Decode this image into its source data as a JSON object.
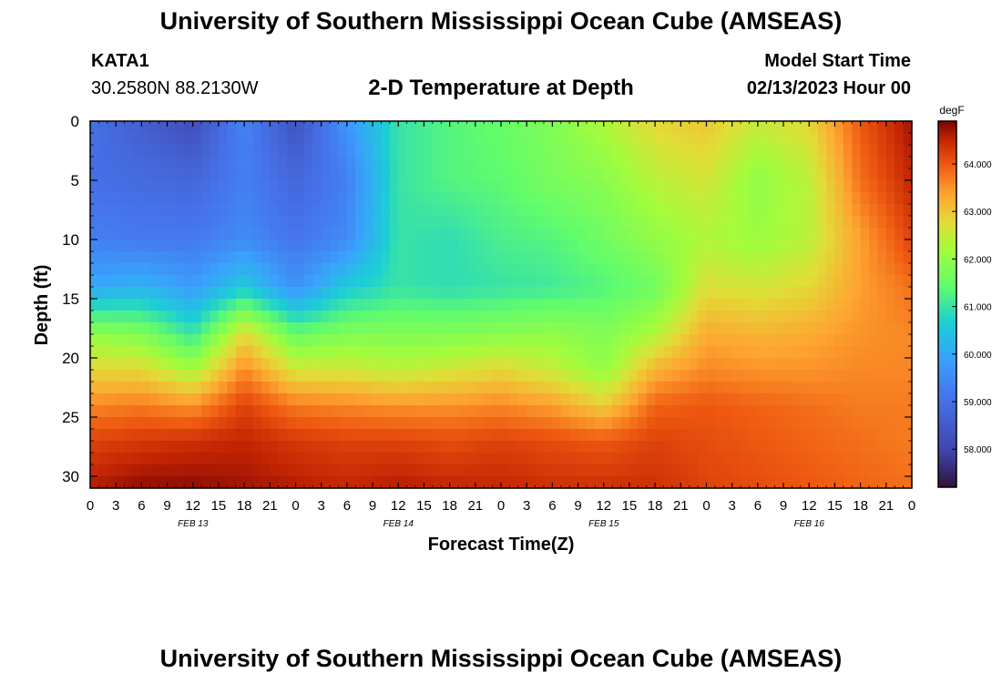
{
  "header": {
    "title": "University of Southern Mississippi Ocean Cube (AMSEAS)",
    "station": "KATA1",
    "coordinates": "30.2580N  88.2130W",
    "model_start_label": "Model Start Time",
    "model_start_value": "02/13/2023 Hour 00"
  },
  "footer": {
    "title": "University of Southern Mississippi Ocean Cube (AMSEAS)"
  },
  "chart_data": {
    "type": "heatmap",
    "title": "2-D Temperature at Depth",
    "xlabel": "Forecast Time(Z)",
    "ylabel": "Depth (ft)",
    "x_tick_labels": [
      "0",
      "3",
      "6",
      "9",
      "12",
      "15",
      "18",
      "21",
      "0",
      "3",
      "6",
      "9",
      "12",
      "15",
      "18",
      "21",
      "0",
      "3",
      "6",
      "9",
      "12",
      "15",
      "18",
      "21",
      "0",
      "3",
      "6",
      "9",
      "12",
      "15",
      "18",
      "21",
      "0"
    ],
    "x_range_hours": [
      0,
      96
    ],
    "date_labels": [
      {
        "label": "FEB 13",
        "hour": 12
      },
      {
        "label": "FEB 14",
        "hour": 36
      },
      {
        "label": "FEB 15",
        "hour": 60
      },
      {
        "label": "FEB 16",
        "hour": 84
      }
    ],
    "y_ticks": [
      0,
      5,
      10,
      15,
      20,
      25,
      30
    ],
    "ylim": [
      0,
      31
    ],
    "colorbar": {
      "unit": "degF",
      "ticks": [
        "64.000",
        "63.000",
        "62.000",
        "61.000",
        "60.000",
        "59.000",
        "58.000"
      ],
      "tick_values": [
        64,
        63,
        62,
        61,
        60,
        59,
        58
      ],
      "range": [
        57.2,
        64.9
      ]
    },
    "grid": {
      "hours": [
        0,
        6,
        12,
        18,
        24,
        30,
        36,
        42,
        48,
        54,
        60,
        66,
        72,
        78,
        84,
        90,
        96
      ],
      "depths": [
        0,
        5,
        10,
        14,
        18,
        21,
        24,
        27,
        31
      ],
      "values": [
        [
          59.0,
          58.6,
          58.2,
          59.4,
          58.3,
          59.7,
          61.0,
          61.3,
          61.5,
          61.8,
          62.3,
          62.8,
          63.0,
          62.5,
          62.8,
          64.0,
          64.7
        ],
        [
          59.0,
          58.9,
          58.8,
          59.3,
          58.8,
          59.3,
          61.0,
          61.3,
          61.4,
          61.7,
          61.9,
          62.4,
          62.6,
          62.0,
          62.4,
          63.8,
          64.5
        ],
        [
          59.3,
          59.2,
          59.2,
          59.5,
          59.1,
          59.5,
          61.0,
          60.9,
          61.2,
          61.3,
          61.6,
          62.0,
          62.3,
          62.1,
          62.4,
          63.4,
          64.2
        ],
        [
          60.0,
          60.2,
          59.8,
          60.6,
          59.6,
          60.6,
          61.0,
          60.9,
          61.0,
          61.1,
          61.3,
          61.6,
          62.7,
          62.6,
          62.8,
          63.4,
          63.8
        ],
        [
          62.0,
          61.8,
          61.0,
          62.8,
          61.5,
          61.8,
          61.8,
          61.8,
          61.9,
          62.0,
          61.8,
          62.3,
          63.3,
          63.2,
          63.3,
          63.5,
          63.6
        ],
        [
          62.8,
          62.8,
          62.2,
          63.6,
          62.6,
          62.6,
          62.4,
          62.6,
          62.8,
          62.5,
          62.0,
          63.2,
          63.6,
          63.5,
          63.5,
          63.6,
          63.6
        ],
        [
          63.6,
          63.7,
          63.5,
          64.2,
          63.7,
          63.6,
          63.5,
          63.5,
          63.6,
          63.4,
          62.9,
          63.9,
          64.0,
          63.9,
          63.8,
          63.7,
          63.7
        ],
        [
          64.2,
          64.3,
          64.4,
          64.5,
          64.3,
          64.2,
          64.2,
          64.1,
          64.2,
          64.1,
          64.0,
          64.2,
          64.1,
          64.0,
          63.9,
          63.8,
          63.7
        ],
        [
          64.6,
          64.8,
          64.8,
          64.7,
          64.6,
          64.5,
          64.6,
          64.5,
          64.5,
          64.4,
          64.4,
          64.4,
          64.2,
          64.1,
          64.0,
          63.9,
          63.8
        ]
      ]
    }
  }
}
